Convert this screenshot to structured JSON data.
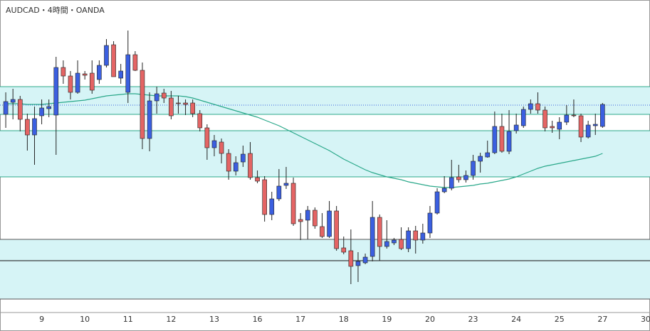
{
  "chart_data": {
    "type": "candlestick",
    "title": "AUDCAD・4時間・OANDA",
    "ylim": [
      0,
      440
    ],
    "xlim": [
      -0.8,
      89.6
    ],
    "xticks": [
      {
        "value": 5,
        "label": "9"
      },
      {
        "value": 11,
        "label": "10"
      },
      {
        "value": 17,
        "label": "11"
      },
      {
        "value": 23,
        "label": "12"
      },
      {
        "value": 29,
        "label": "13"
      },
      {
        "value": 35,
        "label": "16"
      },
      {
        "value": 41,
        "label": "17"
      },
      {
        "value": 47,
        "label": "18"
      },
      {
        "value": 53,
        "label": "19"
      },
      {
        "value": 59,
        "label": "20"
      },
      {
        "value": 65,
        "label": "23"
      },
      {
        "value": 71,
        "label": "24"
      },
      {
        "value": 77,
        "label": "25"
      },
      {
        "value": 83,
        "label": "27"
      },
      {
        "value": 89,
        "label": "30"
      }
    ],
    "up_color": "#3b5fe0",
    "down_color": "#e46464",
    "wick_color": "#222222",
    "open": [
      279,
      296,
      300,
      272,
      250,
      277,
      287,
      278,
      345,
      333,
      310,
      336,
      337,
      328,
      348,
      377,
      330,
      310,
      363,
      341,
      245,
      298,
      309,
      302,
      295,
      295,
      295,
      280,
      260,
      232,
      240,
      224,
      199,
      212,
      224,
      190,
      187,
      138,
      160,
      179,
      182,
      131,
      130,
      144,
      121,
      107,
      143,
      91,
      87,
      66,
      70,
      79,
      134,
      93,
      98,
      103,
      90,
      115,
      102,
      112,
      140,
      170,
      175,
      191,
      187,
      193,
      213,
      219,
      225,
      262,
      227,
      256,
      263,
      286,
      294,
      285,
      262,
      258,
      268,
      278,
      277,
      247,
      263,
      262
    ],
    "high": [
      310,
      315,
      305,
      280,
      290,
      300,
      300,
      360,
      355,
      340,
      355,
      340,
      355,
      355,
      385,
      382,
      350,
      397,
      368,
      352,
      310,
      318,
      315,
      312,
      305,
      300,
      300,
      285,
      265,
      250,
      245,
      230,
      220,
      235,
      240,
      200,
      192,
      170,
      202,
      205,
      190,
      140,
      150,
      148,
      140,
      157,
      150,
      107,
      117,
      85,
      83,
      157,
      138,
      130,
      105,
      120,
      120,
      122,
      125,
      150,
      175,
      192,
      215,
      208,
      200,
      222,
      225,
      242,
      283,
      280,
      285,
      280,
      290,
      300,
      310,
      290,
      270,
      275,
      292,
      300,
      280,
      270,
      280,
      295
    ],
    "low": [
      260,
      272,
      255,
      228,
      208,
      265,
      275,
      222,
      322,
      300,
      308,
      328,
      308,
      322,
      345,
      332,
      322,
      295,
      340,
      230,
      227,
      280,
      295,
      272,
      280,
      278,
      275,
      255,
      215,
      220,
      210,
      187,
      193,
      205,
      187,
      182,
      128,
      130,
      157,
      174,
      122,
      102,
      103,
      118,
      105,
      105,
      87,
      82,
      40,
      43,
      68,
      72,
      73,
      90,
      95,
      88,
      85,
      83,
      97,
      105,
      138,
      168,
      172,
      183,
      183,
      187,
      197,
      218,
      223,
      225,
      223,
      252,
      260,
      280,
      280,
      255,
      253,
      244,
      264,
      275,
      240,
      245,
      250,
      260
    ],
    "close": [
      297,
      300,
      272,
      250,
      273,
      288,
      290,
      345,
      333,
      310,
      337,
      334,
      313,
      348,
      376,
      332,
      340,
      363,
      341,
      245,
      298,
      308,
      302,
      277,
      294,
      293,
      280,
      260,
      232,
      242,
      224,
      199,
      211,
      223,
      190,
      185,
      138,
      160,
      178,
      182,
      125,
      128,
      144,
      122,
      107,
      143,
      90,
      85,
      65,
      72,
      78,
      134,
      93,
      100,
      102,
      90,
      115,
      102,
      112,
      140,
      170,
      175,
      190,
      187,
      193,
      213,
      220,
      225,
      262,
      227,
      255,
      264,
      286,
      294,
      285,
      260,
      260,
      268,
      278,
      277,
      247,
      264,
      265,
      293
    ],
    "moving_average": {
      "color": "#2aa88a",
      "values": [
        294,
        294,
        294,
        293,
        293,
        293,
        294,
        295,
        296,
        297,
        298,
        299,
        301,
        303,
        305,
        306,
        307,
        308,
        308,
        307,
        306,
        305,
        305,
        305,
        305,
        304,
        302,
        299,
        296,
        293,
        290,
        287,
        284,
        281,
        278,
        275,
        271,
        267,
        263,
        258,
        253,
        248,
        243,
        238,
        233,
        228,
        222,
        216,
        211,
        206,
        201,
        197,
        194,
        191,
        189,
        187,
        184,
        182,
        180,
        178,
        177,
        176,
        176,
        177,
        178,
        179,
        181,
        182,
        184,
        186,
        188,
        191,
        195,
        199,
        203,
        206,
        208,
        210,
        212,
        214,
        216,
        218,
        220,
        224
      ]
    },
    "bands": {
      "color": "#d6f4f6",
      "ranges": [
        [
          279,
          318
        ],
        [
          191,
          256
        ],
        [
          73,
          103
        ],
        [
          19,
          73
        ]
      ]
    },
    "levels": [
      {
        "value": 318,
        "color": "#2aa88a"
      },
      {
        "value": 279,
        "color": "#2aa88a"
      },
      {
        "value": 256,
        "color": "#2aa88a"
      },
      {
        "value": 191,
        "color": "#2aa88a"
      },
      {
        "value": 103,
        "color": "#555555"
      },
      {
        "value": 73,
        "color": "#111111"
      },
      {
        "value": 19,
        "color": "#555555"
      }
    ],
    "price_line": {
      "value": 292,
      "color": "#3b5fe0"
    }
  }
}
